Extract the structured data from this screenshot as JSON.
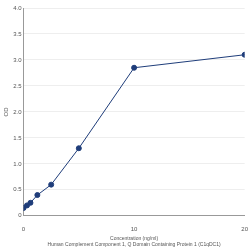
{
  "chart_data": {
    "type": "line",
    "x_label": [
      "Concentration (ng/ml)",
      "Human Complement Component 1, Q Domain Containing Protein 1 (C1qDC1)"
    ],
    "y_label": "OD",
    "x": [
      0,
      0.312,
      0.625,
      1.25,
      2.5,
      5,
      10,
      20
    ],
    "values": [
      0.15,
      0.2,
      0.25,
      0.4,
      0.6,
      1.3,
      2.85,
      3.1
    ],
    "color": "#1f3d7a",
    "marker": "circle",
    "xlim": [
      0,
      20
    ],
    "xticks": [
      0,
      10,
      20
    ],
    "ylim": [
      0,
      4
    ],
    "yticks": [
      0,
      0.5,
      1,
      1.5,
      2,
      2.5,
      3,
      3.5,
      4
    ],
    "grid": true
  }
}
